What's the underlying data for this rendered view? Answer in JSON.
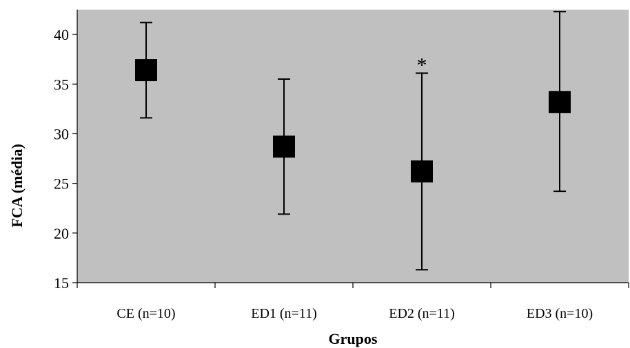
{
  "chart_data": {
    "type": "scatter",
    "xlabel": "Grupos",
    "ylabel": "FCA (média)",
    "ylim": [
      15,
      42.5
    ],
    "yticks": [
      15,
      20,
      25,
      30,
      35,
      40
    ],
    "grid": false,
    "categories": [
      "CE (n=10)",
      "ED1 (n=11)",
      "ED2 (n=11)",
      "ED3 (n=10)"
    ],
    "series": [
      {
        "values": [
          36.4,
          28.7,
          26.2,
          33.2
        ],
        "error_low": [
          31.6,
          21.9,
          16.3,
          24.2
        ],
        "error_high": [
          41.2,
          35.5,
          36.1,
          42.3
        ]
      }
    ],
    "annotations": [
      {
        "category": "ED2 (n=11)",
        "text": "*"
      }
    ],
    "colors": {
      "plot_background": "#c0c0c0",
      "marker": "#000000"
    }
  }
}
